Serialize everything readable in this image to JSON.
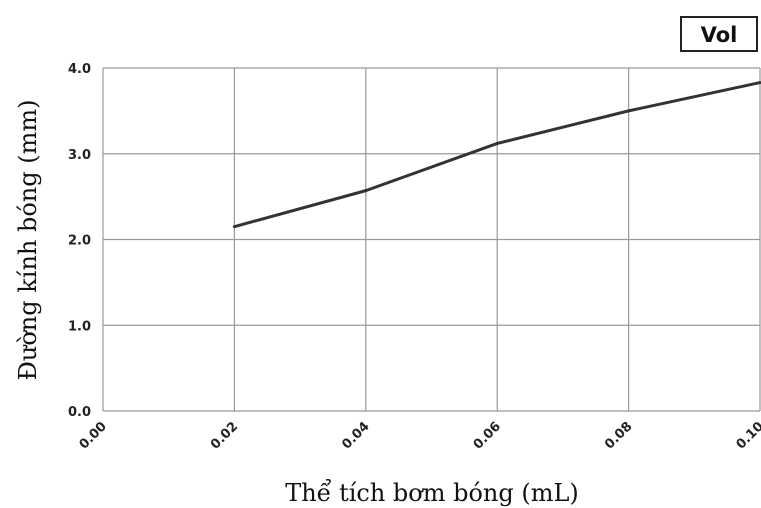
{
  "badge": "Vol",
  "chart_data": {
    "type": "line",
    "xlabel": "Thể tích bơm bóng (mL)",
    "ylabel": "Đường kính bóng (mm)",
    "xlim": [
      0.0,
      0.1
    ],
    "ylim": [
      0.0,
      4.0
    ],
    "x_ticks": [
      "0.00",
      "0.02",
      "0.04",
      "0.06",
      "0.08",
      "0.10"
    ],
    "y_ticks": [
      "0.0",
      "1.0",
      "2.0",
      "3.0",
      "4.0"
    ],
    "grid": true,
    "series": [
      {
        "x": [
          0.02,
          0.04,
          0.06,
          0.08,
          0.1
        ],
        "y": [
          2.15,
          2.57,
          3.12,
          3.5,
          3.83
        ],
        "color": "#333333"
      }
    ]
  }
}
